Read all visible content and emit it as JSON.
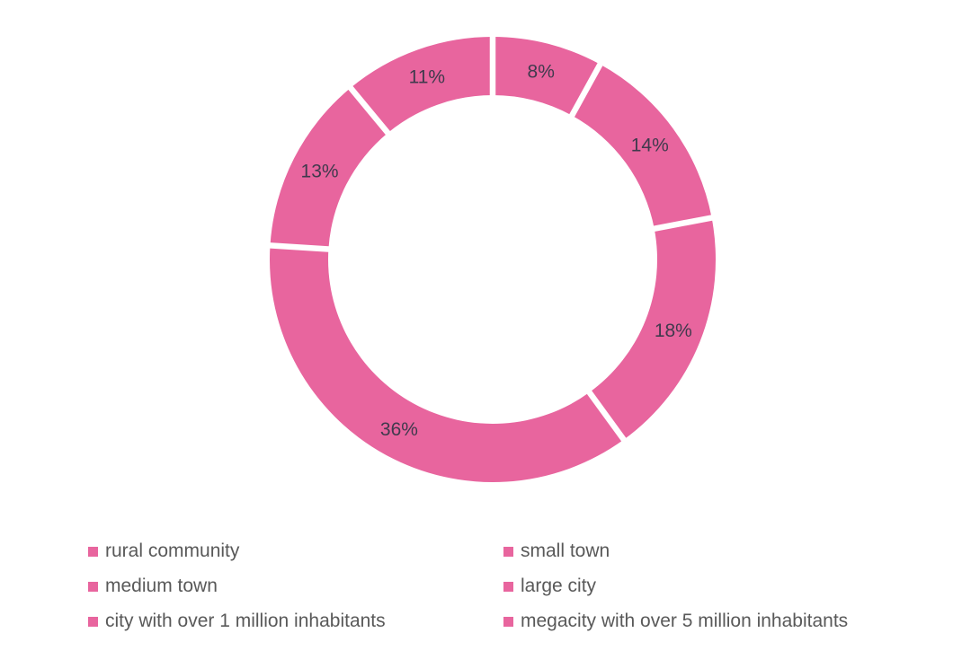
{
  "chart_data": {
    "type": "pie",
    "subtype": "donut",
    "title": "",
    "categories": [
      "rural community",
      "small town",
      "medium town",
      "large city",
      "city with over 1 million inhabitants",
      "megacity with over 5 million inhabitants"
    ],
    "values": [
      8,
      14,
      18,
      36,
      13,
      11
    ],
    "value_labels": [
      "8%",
      "14%",
      "18%",
      "36%",
      "13%",
      "11%"
    ],
    "unit": "%",
    "start_angle_deg": 0,
    "direction": "clockwise",
    "legend_position": "bottom",
    "legend_columns": 2,
    "grid": "off",
    "colors": {
      "slice": "#E8659E",
      "separator": "#FFFFFF",
      "data_label": "#403A4D",
      "legend_text": "#595959",
      "background": "#FFFFFF"
    }
  }
}
